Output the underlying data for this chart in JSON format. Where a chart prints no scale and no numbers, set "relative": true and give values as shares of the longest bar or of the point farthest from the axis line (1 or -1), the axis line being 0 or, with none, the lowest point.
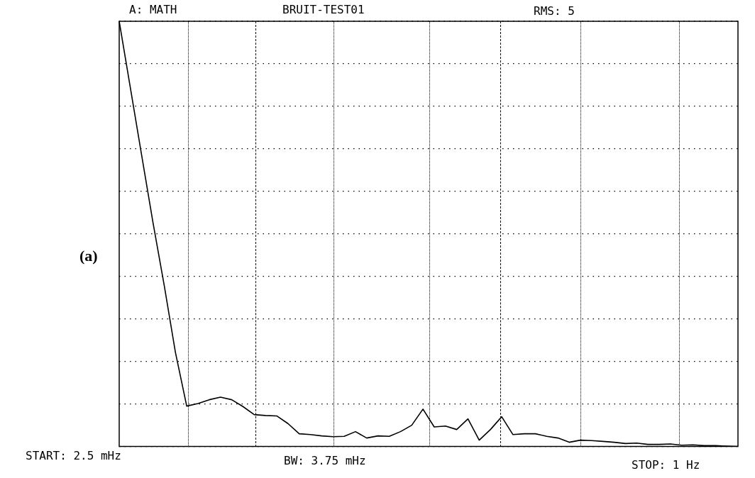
{
  "chart_data": {
    "type": "line",
    "title": "BRUIT-TEST01",
    "relative": true,
    "annotations": [
      "A: MATH",
      "RMS: 5",
      "START: 2.5 mHz",
      "BW: 3.75 mHz",
      "STOP: 1 Hz",
      "(a)"
    ],
    "categories": [
      null,
      null,
      null,
      null,
      null,
      null,
      null,
      null,
      null,
      null,
      null,
      null,
      null,
      null,
      null,
      null,
      null,
      null,
      null,
      null,
      null,
      null,
      null,
      null,
      null,
      null,
      null,
      null,
      null,
      null,
      null,
      null,
      null,
      null,
      null,
      null,
      null,
      null,
      null,
      null,
      null,
      null,
      null,
      null,
      null,
      null,
      null,
      null,
      null,
      null,
      null,
      null,
      null,
      null,
      null,
      null
    ],
    "grid": true,
    "marker": "none",
    "line_style": "solid",
    "series": [
      {
        "color": "#000000",
        "values": [
          1,
          0.842,
          0.684,
          0.527,
          0.379,
          0.221,
          0.095,
          0.101,
          0.11,
          0.116,
          0.11,
          0.094,
          0.075,
          0.073,
          0.072,
          0.054,
          0.03,
          0.028,
          0.025,
          0.023,
          0.024,
          0.035,
          0.02,
          0.025,
          0.024,
          0.035,
          0.05,
          0.088,
          0.046,
          0.048,
          0.04,
          0.065,
          0.015,
          0.04,
          0.07,
          0.028,
          0.03,
          0.03,
          0.024,
          0.02,
          0.01,
          0.015,
          0.014,
          0.012,
          0.01,
          0.007,
          0.008,
          0.005,
          0.005,
          0.006,
          0.003,
          0.004,
          0.002,
          0.002,
          0.001,
          0
        ]
      }
    ]
  }
}
